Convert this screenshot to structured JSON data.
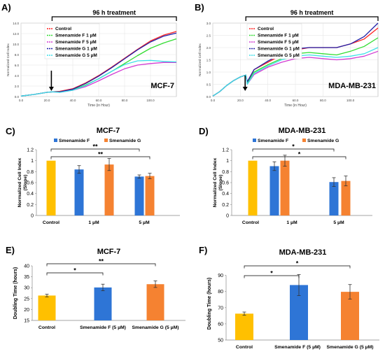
{
  "panels": [
    {
      "id": "A",
      "label": "A)"
    },
    {
      "id": "B",
      "label": "B)"
    },
    {
      "id": "C",
      "label": "C)"
    },
    {
      "id": "D",
      "label": "D)"
    },
    {
      "id": "E",
      "label": "E)"
    },
    {
      "id": "F",
      "label": "F)"
    }
  ],
  "colors": {
    "control": "#ff2020",
    "snF1": "#33dd33",
    "snF5": "#d23bd2",
    "snG1": "#1f1fa8",
    "snG5": "#3fe0e8",
    "bar_control": "#ffc000",
    "bar_F": "#2e75d6",
    "bar_G": "#f58231"
  },
  "chart_data": [
    {
      "panel": "A",
      "type": "line",
      "title": "96 h treatment",
      "cell_line": "MCF-7",
      "xlabel": "Time (in Hour)",
      "ylabel": "Normalized Cell Index",
      "xlim": [
        0,
        120
      ],
      "ylim": [
        0,
        14
      ],
      "xticks": [
        "0.0",
        "20.0",
        "40.0",
        "60.0",
        "80.0",
        "100.0"
      ],
      "yticks": [
        "0.0",
        "2.0",
        "4.0",
        "6.0",
        "8.0",
        "10.0",
        "12.0",
        "14.0"
      ],
      "treatment_start": 24,
      "treatment_end": 120,
      "series": [
        {
          "name": "Control",
          "x": [
            0,
            10,
            20,
            24,
            30,
            40,
            50,
            60,
            70,
            80,
            90,
            100,
            110,
            120
          ],
          "y": [
            0.1,
            0.4,
            0.8,
            0.9,
            1.0,
            1.5,
            2.6,
            4.0,
            5.6,
            7.3,
            9.0,
            10.6,
            11.7,
            12.4
          ]
        },
        {
          "name": "Smenamide F 1 µM",
          "x": [
            0,
            10,
            20,
            24,
            30,
            40,
            50,
            60,
            70,
            80,
            90,
            100,
            110,
            120
          ],
          "y": [
            0.1,
            0.4,
            0.8,
            0.9,
            0.9,
            1.3,
            2.2,
            3.4,
            4.8,
            6.3,
            7.8,
            9.2,
            10.2,
            11.0
          ]
        },
        {
          "name": "Smenamide F 5 µM",
          "x": [
            0,
            10,
            20,
            24,
            30,
            40,
            50,
            60,
            70,
            80,
            90,
            100,
            110,
            120
          ],
          "y": [
            0.1,
            0.4,
            0.8,
            0.9,
            0.8,
            1.2,
            1.9,
            3.0,
            4.2,
            5.3,
            6.0,
            6.3,
            6.5,
            6.5
          ]
        },
        {
          "name": "Smenamide G 1 µM",
          "x": [
            0,
            10,
            20,
            24,
            30,
            40,
            50,
            60,
            70,
            80,
            90,
            100,
            110,
            120
          ],
          "y": [
            0.1,
            0.4,
            0.8,
            0.9,
            0.9,
            1.4,
            2.5,
            3.9,
            5.5,
            7.2,
            8.9,
            10.4,
            11.5,
            12.1
          ]
        },
        {
          "name": "Smenamide G 5 µM",
          "x": [
            0,
            10,
            20,
            24,
            30,
            40,
            50,
            60,
            70,
            80,
            90,
            100,
            110,
            120
          ],
          "y": [
            0.1,
            0.4,
            0.8,
            0.9,
            0.8,
            1.2,
            2.1,
            3.4,
            4.8,
            6.1,
            6.8,
            6.9,
            6.7,
            6.6
          ]
        }
      ]
    },
    {
      "panel": "B",
      "type": "line",
      "title": "96 h treatment",
      "cell_line": "MDA-MB-231",
      "xlabel": "Time (in Hour)",
      "ylabel": "Normalized Cell Index",
      "xlim": [
        0,
        120
      ],
      "ylim": [
        0,
        3
      ],
      "xticks": [
        "0.0",
        "20.0",
        "40.0",
        "60.0",
        "80.0",
        "100.0"
      ],
      "yticks": [
        "0.0",
        "0.5",
        "1.0",
        "1.5",
        "2.0",
        "2.5",
        "3.0"
      ],
      "treatment_start": 24,
      "treatment_end": 120,
      "series": [
        {
          "name": "Control",
          "x": [
            0,
            5,
            10,
            15,
            20,
            24,
            25,
            30,
            40,
            50,
            60,
            70,
            80,
            90,
            100,
            110,
            120
          ],
          "y": [
            0.02,
            0.2,
            0.45,
            0.65,
            0.8,
            0.88,
            0.6,
            1.1,
            1.4,
            1.7,
            1.9,
            2.0,
            2.0,
            2.0,
            2.15,
            2.35,
            2.8
          ]
        },
        {
          "name": "Smenamide F 1 µM",
          "x": [
            0,
            5,
            10,
            15,
            20,
            24,
            25,
            30,
            40,
            50,
            60,
            70,
            80,
            90,
            100,
            110,
            120
          ],
          "y": [
            0.02,
            0.2,
            0.45,
            0.65,
            0.8,
            0.88,
            0.55,
            1.0,
            1.3,
            1.55,
            1.75,
            1.8,
            1.75,
            1.7,
            1.85,
            2.05,
            2.4
          ]
        },
        {
          "name": "Smenamide F 5 µM",
          "x": [
            0,
            5,
            10,
            15,
            20,
            24,
            25,
            30,
            40,
            50,
            60,
            70,
            80,
            90,
            100,
            110,
            120
          ],
          "y": [
            0.02,
            0.2,
            0.45,
            0.65,
            0.8,
            0.88,
            0.5,
            0.9,
            1.2,
            1.4,
            1.55,
            1.6,
            1.55,
            1.5,
            1.55,
            1.65,
            1.85
          ]
        },
        {
          "name": "Smenamide G 1 µM",
          "x": [
            0,
            5,
            10,
            15,
            20,
            24,
            25,
            30,
            40,
            50,
            60,
            70,
            80,
            90,
            100,
            110,
            120
          ],
          "y": [
            0.02,
            0.2,
            0.45,
            0.65,
            0.8,
            0.88,
            0.6,
            1.1,
            1.45,
            1.75,
            1.95,
            2.0,
            2.0,
            2.0,
            2.15,
            2.45,
            3.0
          ]
        },
        {
          "name": "Smenamide G 5 µM",
          "x": [
            0,
            5,
            10,
            15,
            20,
            24,
            25,
            30,
            40,
            50,
            60,
            70,
            80,
            90,
            100,
            110,
            120
          ],
          "y": [
            0.02,
            0.2,
            0.45,
            0.65,
            0.8,
            0.88,
            0.5,
            0.95,
            1.25,
            1.5,
            1.65,
            1.7,
            1.65,
            1.6,
            1.65,
            1.75,
            2.0
          ]
        }
      ]
    },
    {
      "panel": "C",
      "type": "bar",
      "title": "MCF-7",
      "ylabel": "Normalized Cell Index (Slope)",
      "ylim": [
        0,
        1.2
      ],
      "yticks": [
        "0",
        "0.2",
        "0.4",
        "0.6",
        "0.8",
        "1",
        "1.2"
      ],
      "categories": [
        "Control",
        "1 µM",
        "5 µM"
      ],
      "legend": [
        "Smenamide F",
        "Smenamide G"
      ],
      "bars": [
        {
          "category": 0,
          "group": "control",
          "value": 1.0,
          "error": 0
        },
        {
          "category": 1,
          "group": "F",
          "value": 0.84,
          "error": 0.07
        },
        {
          "category": 1,
          "group": "G",
          "value": 0.93,
          "error": 0.11
        },
        {
          "category": 2,
          "group": "F",
          "value": 0.71,
          "error": 0.03
        },
        {
          "category": 2,
          "group": "G",
          "value": 0.72,
          "error": 0.05
        }
      ],
      "significance": [
        {
          "from": 0,
          "to": 3,
          "label": "**"
        },
        {
          "from": 0,
          "to": 4,
          "label": "**"
        }
      ]
    },
    {
      "panel": "D",
      "type": "bar",
      "title": "MDA-MB-231",
      "ylabel": "Normalized Cell Index (Slope)",
      "ylim": [
        0,
        1.2
      ],
      "yticks": [
        "0",
        "0.2",
        "0.4",
        "0.6",
        "0.8",
        "1",
        "1.2"
      ],
      "categories": [
        "Control",
        "1 µM",
        "5 µM"
      ],
      "legend": [
        "Smenamide F",
        "Smenamide G"
      ],
      "bars": [
        {
          "category": 0,
          "group": "control",
          "value": 1.0,
          "error": 0
        },
        {
          "category": 1,
          "group": "F",
          "value": 0.9,
          "error": 0.08
        },
        {
          "category": 1,
          "group": "G",
          "value": 1.0,
          "error": 0.1
        },
        {
          "category": 2,
          "group": "F",
          "value": 0.61,
          "error": 0.08
        },
        {
          "category": 2,
          "group": "G",
          "value": 0.63,
          "error": 0.09
        }
      ],
      "significance": [
        {
          "from": 0,
          "to": 3,
          "label": "*"
        },
        {
          "from": 0,
          "to": 4,
          "label": "*"
        }
      ]
    },
    {
      "panel": "E",
      "type": "bar",
      "title": "MCF-7",
      "ylabel": "Doubling Time (hours)",
      "ylim": [
        15,
        40
      ],
      "yticks": [
        "15",
        "20",
        "25",
        "30",
        "35",
        "40"
      ],
      "categories": [
        "Control",
        "Smenamide F (5 µM)",
        "Smenamide G  (5 µM)"
      ],
      "bars": [
        {
          "category": 0,
          "group": "control",
          "value": 26.4,
          "error": 0.6
        },
        {
          "category": 1,
          "group": "F",
          "value": 30.1,
          "error": 1.5
        },
        {
          "category": 2,
          "group": "G",
          "value": 31.6,
          "error": 1.5
        }
      ],
      "significance": [
        {
          "from": 0,
          "to": 1,
          "label": "*"
        },
        {
          "from": 0,
          "to": 2,
          "label": "**"
        }
      ]
    },
    {
      "panel": "F",
      "type": "bar",
      "title": "MDA-MB-231",
      "ylabel": "Doubling Time (hours)",
      "ylim": [
        50,
        95
      ],
      "yticks": [
        "50",
        "60",
        "70",
        "80",
        "90"
      ],
      "categories": [
        "Control",
        "Smenamide F (5 µM)",
        "Smenamide G  (5 µM)"
      ],
      "bars": [
        {
          "category": 0,
          "group": "control",
          "value": 66.3,
          "error": 1.0
        },
        {
          "category": 1,
          "group": "F",
          "value": 84.0,
          "error": 6.5
        },
        {
          "category": 2,
          "group": "G",
          "value": 79.8,
          "error": 4.5
        }
      ],
      "significance": [
        {
          "from": 0,
          "to": 1,
          "label": "*"
        },
        {
          "from": 0,
          "to": 2,
          "label": "*"
        }
      ]
    }
  ]
}
